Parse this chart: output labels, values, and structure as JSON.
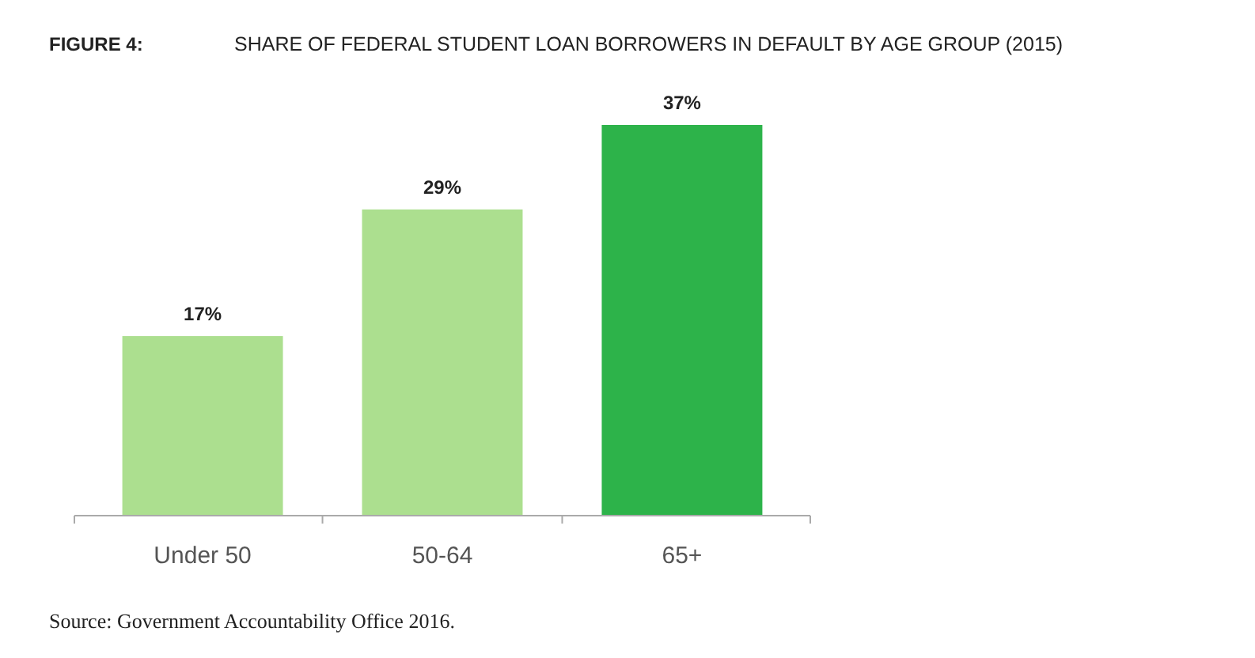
{
  "chart_data": {
    "type": "bar",
    "title": "FIGURE 4:",
    "subtitle": "SHARE OF FEDERAL STUDENT LOAN BORROWERS IN DEFAULT BY AGE GROUP (2015)",
    "categories": [
      "Under 50",
      "50-64",
      "65+"
    ],
    "values": [
      17,
      29,
      37
    ],
    "colors": [
      "#acdf8f",
      "#acdf8f",
      "#2db34a"
    ],
    "value_labels": [
      "17%",
      "29%",
      "37%"
    ],
    "tick_labels": "x",
    "annotations": [
      "Source: Government Accountability Office 2016."
    ]
  }
}
